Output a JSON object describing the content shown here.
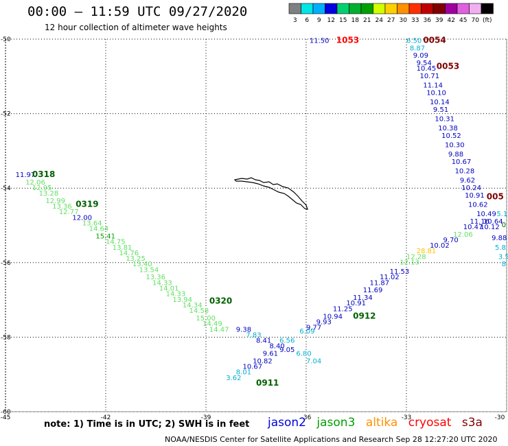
{
  "header": {
    "title": "00:00 – 11:59 UTC 09/27/2020",
    "subtitle": "12 hour collection of altimeter wave heights"
  },
  "colorbar": {
    "labels": [
      "3",
      "6",
      "9",
      "12",
      "15",
      "18",
      "21",
      "24",
      "27",
      "30",
      "33",
      "36",
      "39",
      "42",
      "45",
      "70",
      "(ft)"
    ],
    "colors": [
      "#808080",
      "#00e5e5",
      "#00b0ff",
      "#0000e0",
      "#00d070",
      "#00b030",
      "#00a000",
      "#d0ff00",
      "#ffd000",
      "#ff9000",
      "#ff3000",
      "#c00000",
      "#800000",
      "#a000a0",
      "#e060e0",
      "#f0b0f0",
      "#000000"
    ]
  },
  "axes": {
    "x_ticks": [
      "-45",
      "-42",
      "-39",
      "-36",
      "-33",
      "-30"
    ],
    "y_ticks": [
      "-50",
      "-52",
      "-54",
      "-56",
      "-58",
      "-60"
    ]
  },
  "track_labels": [
    {
      "text": "0318",
      "color": "#006000",
      "lon": -44.2,
      "lat": -53.7
    },
    {
      "text": "0319",
      "color": "#006000",
      "lon": -42.9,
      "lat": -54.5
    },
    {
      "text": "0320",
      "color": "#006000",
      "lon": -38.9,
      "lat": -57.1
    },
    {
      "text": "0911",
      "color": "#006000",
      "lon": -37.5,
      "lat": -59.3
    },
    {
      "text": "0912",
      "color": "#006000",
      "lon": -34.6,
      "lat": -57.5
    },
    {
      "text": "1053",
      "color": "#ff0000",
      "lon": -35.1,
      "lat": -50.1
    },
    {
      "text": "0054",
      "color": "#800000",
      "lon": -32.5,
      "lat": -50.1
    },
    {
      "text": "0053",
      "color": "#800000",
      "lon": -32.1,
      "lat": -50.8
    },
    {
      "text": "005",
      "color": "#800000",
      "lon": -30.6,
      "lat": -54.3
    }
  ],
  "wave_heights": [
    {
      "v": "11.97",
      "c": "#0000c0",
      "lon": -44.7,
      "lat": -53.7
    },
    {
      "v": "12.06",
      "c": "#60e060",
      "lon": -44.4,
      "lat": -53.9
    },
    {
      "v": "12.95",
      "c": "#60e060",
      "lon": -44.2,
      "lat": -54.05
    },
    {
      "v": "13.28",
      "c": "#60e060",
      "lon": -44.0,
      "lat": -54.2
    },
    {
      "v": "12.99",
      "c": "#60e060",
      "lon": -43.8,
      "lat": -54.4
    },
    {
      "v": "13.36",
      "c": "#60e060",
      "lon": -43.6,
      "lat": -54.55
    },
    {
      "v": "12.77",
      "c": "#60e060",
      "lon": -43.4,
      "lat": -54.7
    },
    {
      "v": "12.00",
      "c": "#0000c0",
      "lon": -43.0,
      "lat": -54.85
    },
    {
      "v": "13.64",
      "c": "#60e060",
      "lon": -42.7,
      "lat": -55.0
    },
    {
      "v": "14.64",
      "c": "#60e060",
      "lon": -42.5,
      "lat": -55.15
    },
    {
      "v": "15.41",
      "c": "#00a000",
      "lon": -42.3,
      "lat": -55.35
    },
    {
      "v": "14.75",
      "c": "#60e060",
      "lon": -42.0,
      "lat": -55.5
    },
    {
      "v": "13.81",
      "c": "#60e060",
      "lon": -41.8,
      "lat": -55.65
    },
    {
      "v": "14.76",
      "c": "#60e060",
      "lon": -41.6,
      "lat": -55.8
    },
    {
      "v": "13.25",
      "c": "#60e060",
      "lon": -41.4,
      "lat": -55.95
    },
    {
      "v": "13.40",
      "c": "#60e060",
      "lon": -41.2,
      "lat": -56.1
    },
    {
      "v": "13.54",
      "c": "#60e060",
      "lon": -41.0,
      "lat": -56.25
    },
    {
      "v": "13.36",
      "c": "#60e060",
      "lon": -40.8,
      "lat": -56.45
    },
    {
      "v": "14.33",
      "c": "#60e060",
      "lon": -40.6,
      "lat": -56.6
    },
    {
      "v": "14.01",
      "c": "#60e060",
      "lon": -40.4,
      "lat": -56.75
    },
    {
      "v": "14.33",
      "c": "#60e060",
      "lon": -40.2,
      "lat": -56.9
    },
    {
      "v": "13.94",
      "c": "#60e060",
      "lon": -40.0,
      "lat": -57.05
    },
    {
      "v": "14.34",
      "c": "#60e060",
      "lon": -39.7,
      "lat": -57.2
    },
    {
      "v": "14.58",
      "c": "#60e060",
      "lon": -39.5,
      "lat": -57.35
    },
    {
      "v": "15.00",
      "c": "#60e060",
      "lon": -39.3,
      "lat": -57.55
    },
    {
      "v": "14.49",
      "c": "#60e060",
      "lon": -39.1,
      "lat": -57.7
    },
    {
      "v": "14.47",
      "c": "#60e060",
      "lon": -38.9,
      "lat": -57.85
    },
    {
      "v": "9.38",
      "c": "#0000c0",
      "lon": -38.1,
      "lat": -57.85
    },
    {
      "v": "7.83",
      "c": "#00b0d0",
      "lon": -37.8,
      "lat": -58.0
    },
    {
      "v": "8.41",
      "c": "#0000c0",
      "lon": -37.5,
      "lat": -58.15
    },
    {
      "v": "8.40",
      "c": "#0000c0",
      "lon": -37.1,
      "lat": -58.3
    },
    {
      "v": "9.05",
      "c": "#0000c0",
      "lon": -36.8,
      "lat": -58.4
    },
    {
      "v": "9.61",
      "c": "#0000c0",
      "lon": -37.3,
      "lat": -58.5
    },
    {
      "v": "10.82",
      "c": "#0000c0",
      "lon": -37.6,
      "lat": -58.7
    },
    {
      "v": "10.67",
      "c": "#0000c0",
      "lon": -37.9,
      "lat": -58.85
    },
    {
      "v": "8.01",
      "c": "#00b0d0",
      "lon": -38.1,
      "lat": -59.0
    },
    {
      "v": "3.62",
      "c": "#00b0d0",
      "lon": -38.4,
      "lat": -59.15
    },
    {
      "v": "7.04",
      "c": "#00b0d0",
      "lon": -36.0,
      "lat": -58.7
    },
    {
      "v": "6.80",
      "c": "#00b0d0",
      "lon": -36.3,
      "lat": -58.5
    },
    {
      "v": "6.56",
      "c": "#00b0d0",
      "lon": -36.8,
      "lat": -58.15
    },
    {
      "v": "6.09",
      "c": "#00b0d0",
      "lon": -36.2,
      "lat": -57.9
    },
    {
      "v": "9.93",
      "c": "#0000c0",
      "lon": -35.7,
      "lat": -57.65
    },
    {
      "v": "9.77",
      "c": "#0000c0",
      "lon": -36.0,
      "lat": -57.8
    },
    {
      "v": "10.94",
      "c": "#0000c0",
      "lon": -35.5,
      "lat": -57.5
    },
    {
      "v": "11.25",
      "c": "#0000c0",
      "lon": -35.2,
      "lat": -57.3
    },
    {
      "v": "10.91",
      "c": "#0000c0",
      "lon": -34.8,
      "lat": -57.15
    },
    {
      "v": "11.34",
      "c": "#0000c0",
      "lon": -34.6,
      "lat": -57.0
    },
    {
      "v": "11.69",
      "c": "#0000c0",
      "lon": -34.3,
      "lat": -56.8
    },
    {
      "v": "11.87",
      "c": "#0000c0",
      "lon": -34.1,
      "lat": -56.6
    },
    {
      "v": "11.02",
      "c": "#0000c0",
      "lon": -33.8,
      "lat": -56.45
    },
    {
      "v": "11.53",
      "c": "#0000c0",
      "lon": -33.5,
      "lat": -56.3
    },
    {
      "v": "12.13",
      "c": "#60e060",
      "lon": -33.2,
      "lat": -56.05
    },
    {
      "v": "12.28",
      "c": "#60e060",
      "lon": -33.0,
      "lat": -55.9
    },
    {
      "v": "28.81",
      "c": "#ffc000",
      "lon": -32.7,
      "lat": -55.75
    },
    {
      "v": "10.02",
      "c": "#0000c0",
      "lon": -32.3,
      "lat": -55.6
    },
    {
      "v": "9.70",
      "c": "#0000c0",
      "lon": -31.9,
      "lat": -55.45
    },
    {
      "v": "12.06",
      "c": "#60e060",
      "lon": -31.6,
      "lat": -55.3
    },
    {
      "v": "10.47",
      "c": "#0000c0",
      "lon": -31.3,
      "lat": -55.1
    },
    {
      "v": "11.16",
      "c": "#0000c0",
      "lon": -31.1,
      "lat": -54.95
    },
    {
      "v": "11.50",
      "c": "#0000c0",
      "lon": -35.9,
      "lat": -50.1
    },
    {
      "v": "6.50",
      "c": "#00b0d0",
      "lon": -33.0,
      "lat": -50.1
    },
    {
      "v": "8.87",
      "c": "#00b0d0",
      "lon": -32.9,
      "lat": -50.3
    },
    {
      "v": "9.09",
      "c": "#0000c0",
      "lon": -32.8,
      "lat": -50.5
    },
    {
      "v": "9.54",
      "c": "#0000c0",
      "lon": -32.7,
      "lat": -50.7
    },
    {
      "v": "10.45",
      "c": "#0000c0",
      "lon": -32.7,
      "lat": -50.85
    },
    {
      "v": "10.71",
      "c": "#0000c0",
      "lon": -32.6,
      "lat": -51.05
    },
    {
      "v": "11.14",
      "c": "#0000c0",
      "lon": -32.5,
      "lat": -51.3
    },
    {
      "v": "10.10",
      "c": "#0000c0",
      "lon": -32.4,
      "lat": -51.5
    },
    {
      "v": "10.14",
      "c": "#0000c0",
      "lon": -32.3,
      "lat": -51.75
    },
    {
      "v": "9.51",
      "c": "#0000c0",
      "lon": -32.2,
      "lat": -51.95
    },
    {
      "v": "10.31",
      "c": "#0000c0",
      "lon": -32.15,
      "lat": -52.2
    },
    {
      "v": "10.38",
      "c": "#0000c0",
      "lon": -32.05,
      "lat": -52.45
    },
    {
      "v": "10.52",
      "c": "#0000c0",
      "lon": -31.95,
      "lat": -52.65
    },
    {
      "v": "10.30",
      "c": "#0000c0",
      "lon": -31.85,
      "lat": -52.9
    },
    {
      "v": "9.88",
      "c": "#0000c0",
      "lon": -31.75,
      "lat": -53.15
    },
    {
      "v": "10.67",
      "c": "#0000c0",
      "lon": -31.65,
      "lat": -53.35
    },
    {
      "v": "10.28",
      "c": "#0000c0",
      "lon": -31.55,
      "lat": -53.6
    },
    {
      "v": "9.62",
      "c": "#0000c0",
      "lon": -31.4,
      "lat": -53.85
    },
    {
      "v": "10.24",
      "c": "#0000c0",
      "lon": -31.35,
      "lat": -54.05
    },
    {
      "v": "10.91",
      "c": "#0000c0",
      "lon": -31.25,
      "lat": -54.25
    },
    {
      "v": "10.62",
      "c": "#0000c0",
      "lon": -31.15,
      "lat": -54.5
    },
    {
      "v": "10.49",
      "c": "#0000c0",
      "lon": -30.9,
      "lat": -54.75
    },
    {
      "v": "10.64",
      "c": "#0000c0",
      "lon": -30.7,
      "lat": -54.95
    },
    {
      "v": "10.12",
      "c": "#0000c0",
      "lon": -30.8,
      "lat": -55.1
    },
    {
      "v": "9.88",
      "c": "#0000c0",
      "lon": -30.45,
      "lat": -55.4
    },
    {
      "v": "5.8",
      "c": "#00b0d0",
      "lon": -30.35,
      "lat": -55.65
    },
    {
      "v": "3.5",
      "c": "#00b0d0",
      "lon": -30.25,
      "lat": -55.9
    },
    {
      "v": "8",
      "c": "#00b0d0",
      "lon": -30.15,
      "lat": -56.1
    },
    {
      "v": "5.1",
      "c": "#00b0d0",
      "lon": -30.3,
      "lat": -54.75
    },
    {
      "v": "0",
      "c": "#006000",
      "lon": -30.15,
      "lat": -55.05
    }
  ],
  "legend": {
    "items": [
      {
        "name": "jason2",
        "color": "#0000e0"
      },
      {
        "name": "jason3",
        "color": "#00a000"
      },
      {
        "name": "altika",
        "color": "#ff9000"
      },
      {
        "name": "cryosat",
        "color": "#ff0000"
      },
      {
        "name": "s3a",
        "color": "#800000"
      }
    ]
  },
  "footer": {
    "note": "note: 1) Time is in UTC; 2) SWH is in feet",
    "credit": "NOAA/NESDIS Center for Satellite Applications and Research    Sep 28 12:27:20 UTC 2020"
  }
}
